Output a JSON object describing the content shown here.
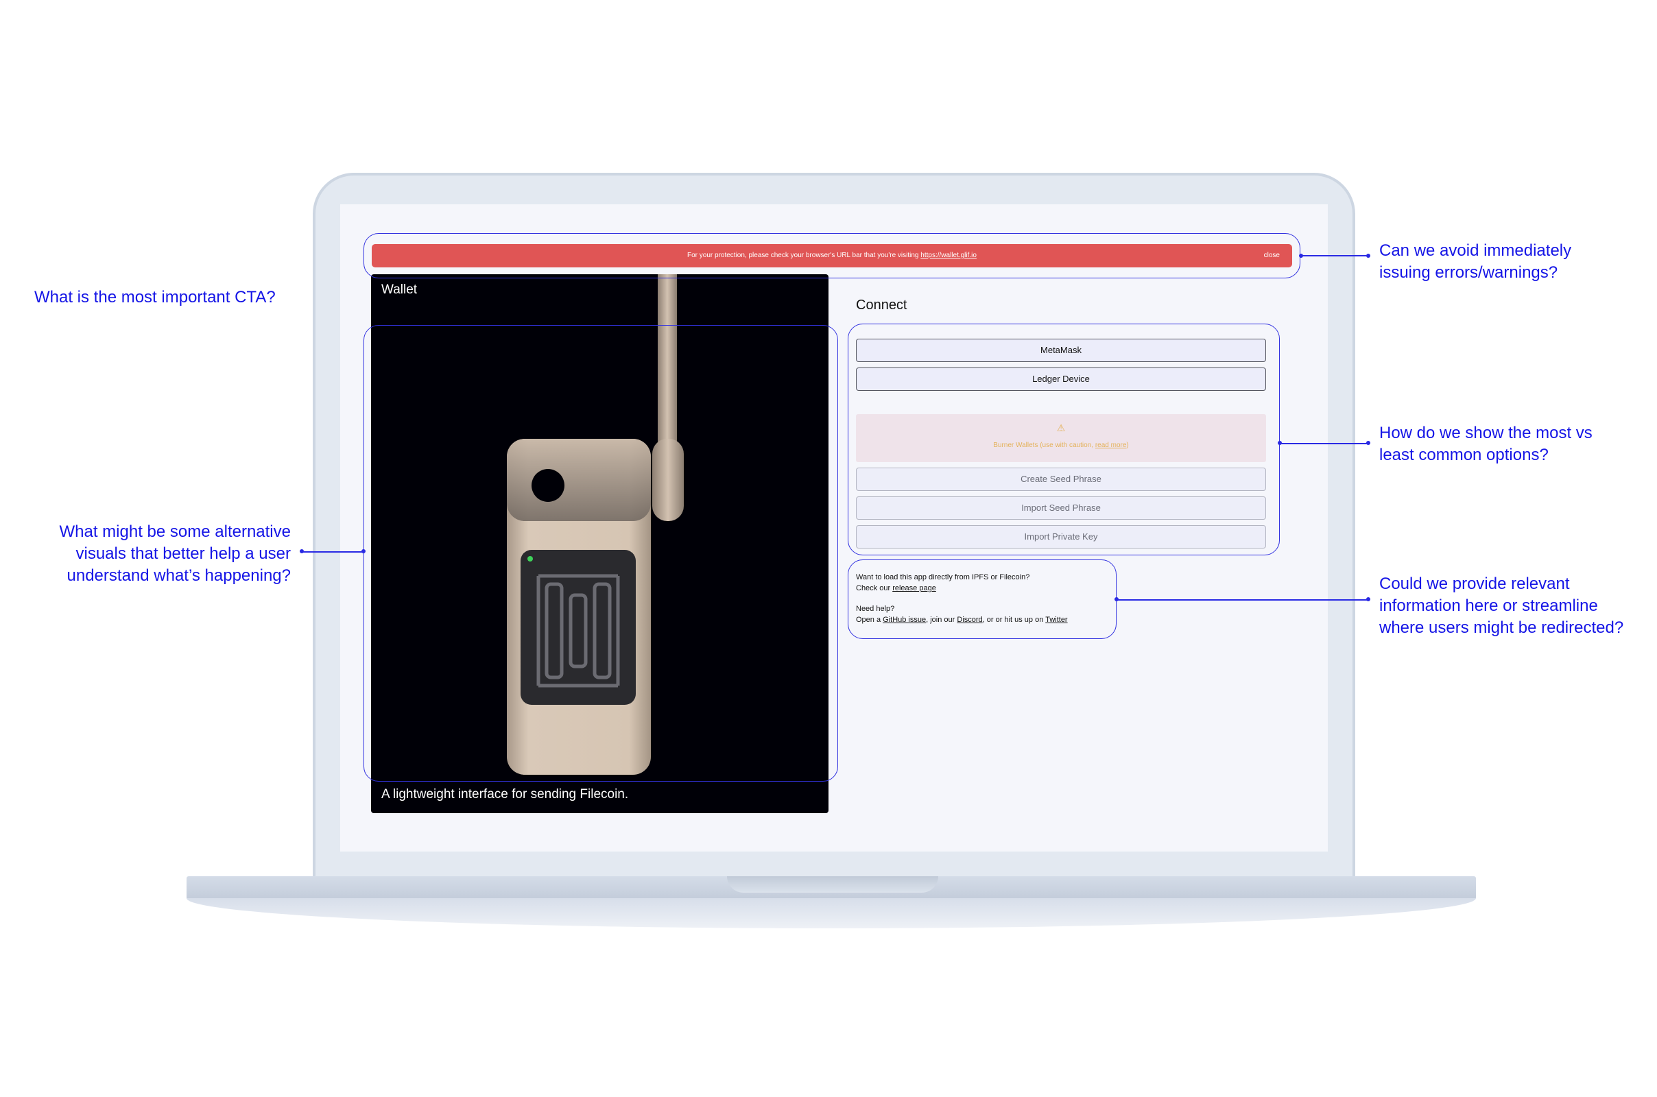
{
  "banner": {
    "text": "For your protection, please check your browser's URL bar that you're visiting ",
    "link": "https://wallet.glif.io",
    "close_label": "close"
  },
  "hero": {
    "title": "Wallet",
    "caption": "A lightweight interface for sending Filecoin."
  },
  "connect": {
    "title": "Connect",
    "primary_options": [
      "MetaMask",
      "Ledger Device"
    ],
    "burner_icon": "warning-triangle-icon",
    "burner_warning": "Burner Wallets (use with caution, ",
    "burner_link": "read more",
    "burner_close": ")",
    "burner_options": [
      "Create Seed Phrase",
      "Import Seed Phrase",
      "Import Private Key"
    ]
  },
  "help": {
    "ipfs_question": "Want to load this app directly from IPFS or Filecoin?",
    "check_prefix": "Check our ",
    "release_link": "release page",
    "need_help": "Need help?",
    "open_prefix": "Open a ",
    "github_link": "GitHub issue",
    "join_text": ", join our ",
    "discord_link": "Discord",
    "or_text": ", or or hit us up on ",
    "twitter_link": "Twitter"
  },
  "annotations": {
    "cta": "What is the most important CTA?",
    "visuals": [
      "What might be some alternative",
      "visuals that better help a user",
      "understand what’s happening?"
    ],
    "errors": [
      "Can we avoid immediately",
      "issuing errors/warnings?"
    ],
    "options": [
      "How do we show the most vs",
      "least common options?"
    ],
    "info": [
      "Could we provide relevant",
      "information here or streamline",
      "where users might be redirected?"
    ]
  },
  "colors": {
    "banner_red": "#e05555",
    "annotation_blue": "#1515e6",
    "warning_amber": "#e4b25a"
  }
}
